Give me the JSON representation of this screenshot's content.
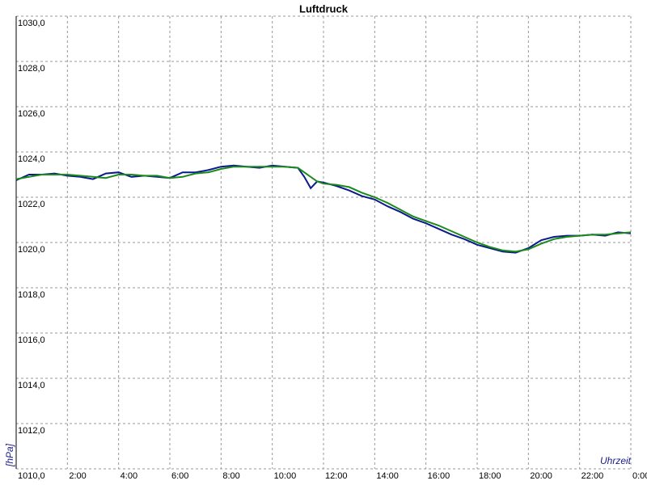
{
  "chart_data": {
    "type": "line",
    "title": "Luftdruck",
    "y_label": "[hPa]",
    "x_label": "Uhrzeit",
    "x": [
      0,
      0.5,
      1,
      1.5,
      2,
      2.5,
      3,
      3.5,
      4,
      4.5,
      5,
      5.5,
      6,
      6.5,
      7,
      7.5,
      8,
      8.5,
      9,
      9.5,
      10,
      10.5,
      11,
      11.25,
      11.5,
      11.75,
      12,
      12.5,
      13,
      13.5,
      14,
      14.5,
      15,
      15.5,
      16,
      16.5,
      17,
      17.5,
      18,
      18.5,
      19,
      19.5,
      20,
      20.5,
      21,
      21.5,
      22,
      22.5,
      23,
      23.5,
      24
    ],
    "series": [
      {
        "color": "#0a1a8c",
        "values": [
          1022.75,
          1023.0,
          1023.0,
          1023.05,
          1022.95,
          1022.9,
          1022.8,
          1023.05,
          1023.1,
          1022.9,
          1022.95,
          1022.9,
          1022.85,
          1023.1,
          1023.1,
          1023.2,
          1023.35,
          1023.4,
          1023.35,
          1023.3,
          1023.4,
          1023.35,
          1023.3,
          1022.9,
          1022.4,
          1022.7,
          1022.65,
          1022.5,
          1022.3,
          1022.05,
          1021.9,
          1021.6,
          1021.35,
          1021.05,
          1020.85,
          1020.6,
          1020.35,
          1020.15,
          1019.9,
          1019.75,
          1019.6,
          1019.55,
          1019.75,
          1020.1,
          1020.25,
          1020.3,
          1020.3,
          1020.35,
          1020.3,
          1020.45,
          1020.4
        ]
      },
      {
        "color": "#1a8a1a",
        "values": [
          1022.8,
          1022.9,
          1023.0,
          1023.0,
          1023.0,
          1022.95,
          1022.9,
          1022.85,
          1023.0,
          1023.0,
          1022.95,
          1022.95,
          1022.85,
          1022.9,
          1023.05,
          1023.1,
          1023.25,
          1023.35,
          1023.35,
          1023.35,
          1023.35,
          1023.35,
          1023.3,
          1023.1,
          1022.9,
          1022.7,
          1022.6,
          1022.55,
          1022.45,
          1022.2,
          1022.0,
          1021.75,
          1021.45,
          1021.15,
          1020.95,
          1020.75,
          1020.5,
          1020.25,
          1020.0,
          1019.8,
          1019.65,
          1019.6,
          1019.7,
          1019.95,
          1020.15,
          1020.25,
          1020.3,
          1020.35,
          1020.35,
          1020.4,
          1020.45
        ]
      }
    ],
    "xlim": [
      0,
      24
    ],
    "xticks": [
      {
        "value": 2,
        "label": "2:00"
      },
      {
        "value": 4,
        "label": "4:00"
      },
      {
        "value": 6,
        "label": "6:00"
      },
      {
        "value": 8,
        "label": "8:00"
      },
      {
        "value": 10,
        "label": "10:00"
      },
      {
        "value": 12,
        "label": "12:00"
      },
      {
        "value": 14,
        "label": "14:00"
      },
      {
        "value": 16,
        "label": "16:00"
      },
      {
        "value": 18,
        "label": "18:00"
      },
      {
        "value": 20,
        "label": "20:00"
      },
      {
        "value": 22,
        "label": "22:00"
      },
      {
        "value": 24,
        "label": "0:00"
      }
    ],
    "ylim": [
      1010,
      1030
    ],
    "yticks": [
      {
        "value": 1010,
        "label": "1010,0"
      },
      {
        "value": 1012,
        "label": "1012,0"
      },
      {
        "value": 1014,
        "label": "1014,0"
      },
      {
        "value": 1016,
        "label": "1016,0"
      },
      {
        "value": 1018,
        "label": "1018,0"
      },
      {
        "value": 1020,
        "label": "1020,0"
      },
      {
        "value": 1022,
        "label": "1022,0"
      },
      {
        "value": 1024,
        "label": "1024,0"
      },
      {
        "value": 1026,
        "label": "1026,0"
      },
      {
        "value": 1028,
        "label": "1028,0"
      },
      {
        "value": 1030,
        "label": "1030,0"
      }
    ],
    "grid": true
  }
}
